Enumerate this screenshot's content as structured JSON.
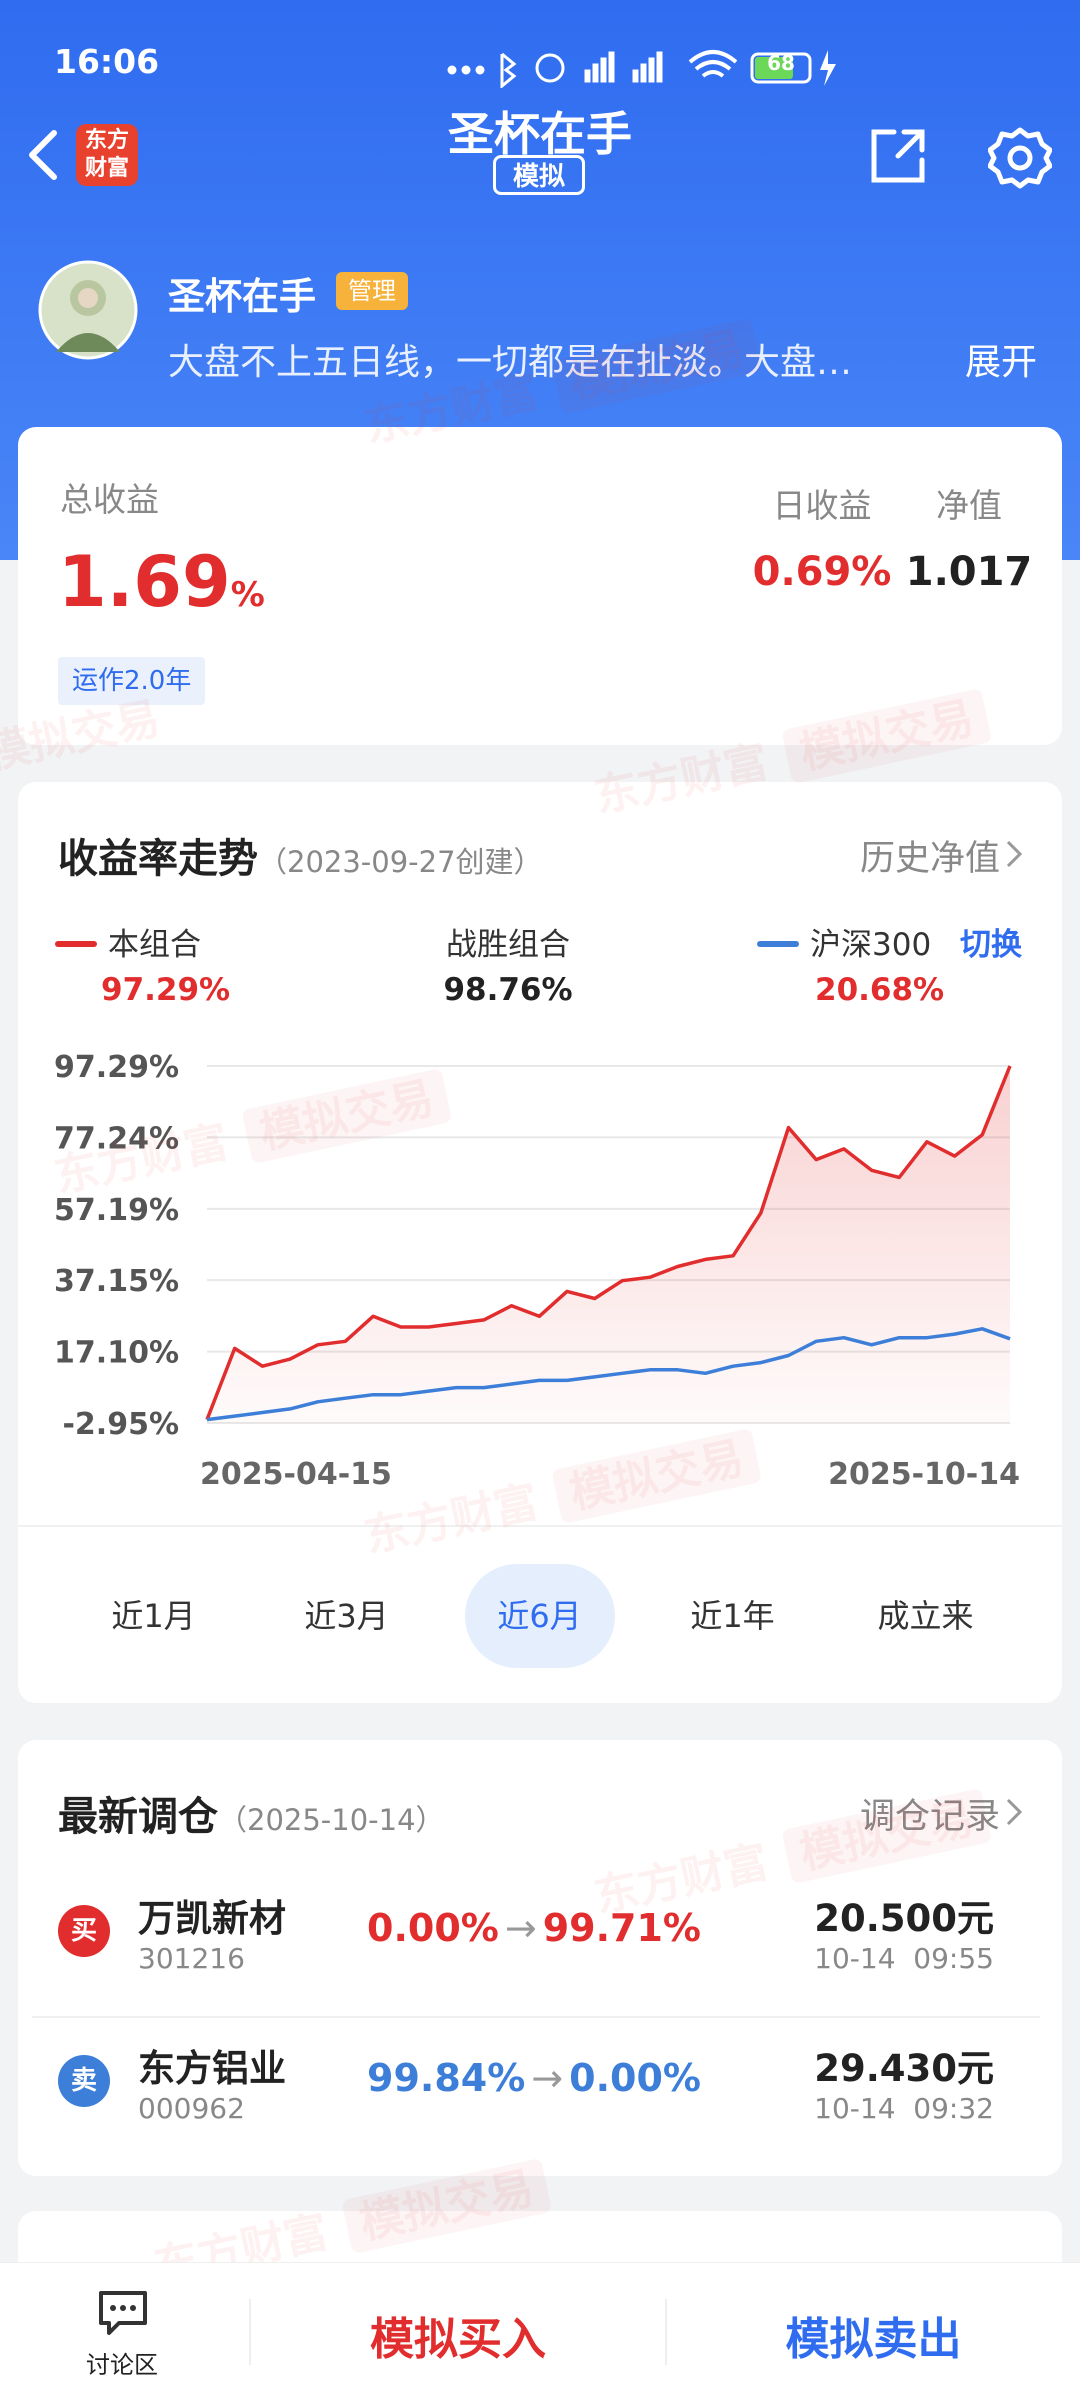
{
  "status_bar": {
    "time": "16:06",
    "battery": "68"
  },
  "nav": {
    "logo": [
      "东方",
      "财富"
    ],
    "title": "圣杯在手",
    "badge": "模拟"
  },
  "profile": {
    "name": "圣杯在手",
    "tag": "管理",
    "description": "大盘不上五日线，一切都是在扯淡。大盘…",
    "expand": "展开"
  },
  "summary": {
    "total_label": "总收益",
    "total_value": "1.69",
    "total_unit": "%",
    "duration": "运作2.0年",
    "daily_label": "日收益",
    "daily_value": "0.69%",
    "nav_label": "净值",
    "nav_value": "1.017"
  },
  "chart": {
    "type": "line",
    "title": "收益率走势",
    "subtitle": "（2023-09-27创建）",
    "link": "历史净值",
    "categories": [
      "2025-04-15",
      null,
      null,
      null,
      null,
      null,
      null,
      null,
      null,
      null,
      null,
      null,
      null,
      null,
      null,
      null,
      null,
      null,
      null,
      null,
      null,
      null,
      null,
      null,
      null,
      null,
      null,
      null,
      null,
      "2025-10-14"
    ],
    "series": [
      {
        "name": "本组合",
        "summary": "97.29%",
        "color": "#e12d2d",
        "values": [
          -2,
          18,
          13,
          15,
          19,
          20,
          27,
          24,
          24,
          25,
          26,
          30,
          27,
          34,
          32,
          37,
          38,
          41,
          43,
          44,
          56,
          80,
          71,
          74,
          68,
          66,
          76,
          72,
          78,
          97.29
        ]
      },
      {
        "name": "沪深300",
        "summary": "20.68%",
        "color": "#3d7fd8",
        "values": [
          -2,
          -1,
          0,
          1,
          3,
          4,
          5,
          5,
          6,
          7,
          7,
          8,
          9,
          9,
          10,
          11,
          12,
          12,
          11,
          13,
          14,
          16,
          20,
          21,
          19,
          21,
          21,
          22,
          23.5,
          20.68
        ]
      }
    ],
    "beat": {
      "name": "战胜组合",
      "value": "98.76%"
    },
    "switch": "切换",
    "ylim": [
      -2.95,
      97.29
    ],
    "yticks": [
      {
        "value": -2.95,
        "label": "-2.95%"
      },
      {
        "value": 17.1,
        "label": "17.10%"
      },
      {
        "value": 37.15,
        "label": "37.15%"
      },
      {
        "value": 57.19,
        "label": "57.19%"
      },
      {
        "value": 77.24,
        "label": "77.24%"
      },
      {
        "value": 97.29,
        "label": "97.29%"
      }
    ],
    "grid": true
  },
  "periods": {
    "options": [
      "近1月",
      "近3月",
      "近6月",
      "近1年",
      "成立来"
    ],
    "selected": 2
  },
  "trades": {
    "title": "最新调仓",
    "date": "（2025-10-14）",
    "link": "调仓记录",
    "arrow": "→",
    "rows": [
      {
        "action": "买",
        "name": "万凯新材",
        "code": "301216",
        "from": "0.00%",
        "to": "99.71%",
        "price": "20.500元",
        "time": "10-14  09:55",
        "color": "#e12d2d"
      },
      {
        "action": "卖",
        "name": "东方铝业",
        "code": "000962",
        "from": "99.84%",
        "to": "0.00%",
        "price": "29.430元",
        "time": "10-14  09:32",
        "color": "#3d7fd8"
      }
    ]
  },
  "bottom": {
    "discuss": "讨论区",
    "buy": "模拟买入",
    "sell": "模拟卖出"
  },
  "watermark": {
    "brand": "东方财富",
    "mode": "模拟交易"
  }
}
